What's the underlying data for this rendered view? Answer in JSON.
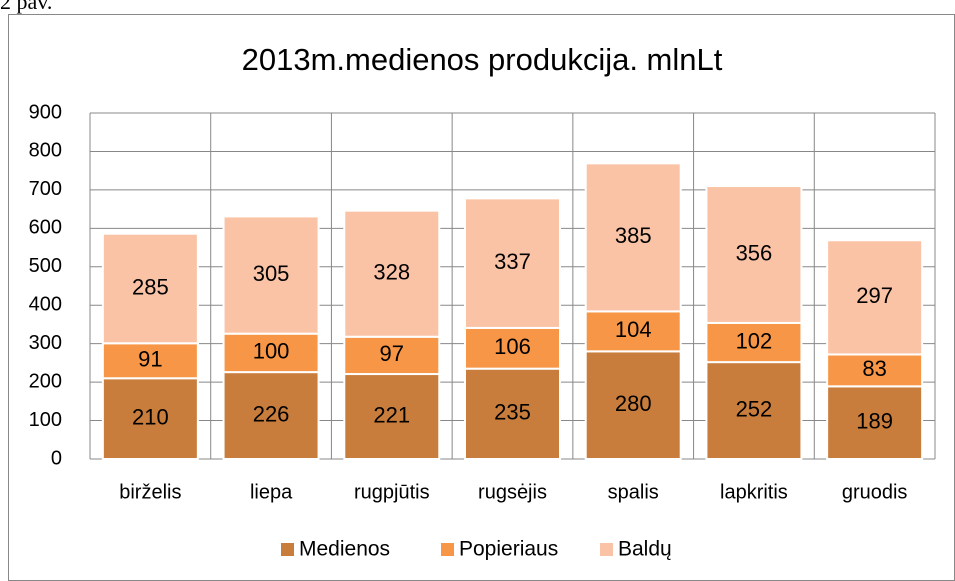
{
  "caption": "2 pav.",
  "chart_data": {
    "type": "stacked_bar",
    "title": "2013m.medienos produkcija. mlnLt",
    "categories": [
      "birželis",
      "liepa",
      "rugpjūtis",
      "rugsėjis",
      "spalis",
      "lapkritis",
      "gruodis"
    ],
    "series": [
      {
        "name": "Medienos",
        "color": "#c87d3c",
        "values": [
          210,
          226,
          221,
          235,
          280,
          252,
          189
        ]
      },
      {
        "name": "Popieriaus",
        "color": "#f79646",
        "values": [
          91,
          100,
          97,
          106,
          104,
          102,
          83
        ]
      },
      {
        "name": "Baldų",
        "color": "#fac3a6",
        "values": [
          285,
          305,
          328,
          337,
          385,
          356,
          297
        ]
      }
    ],
    "ylim": [
      0,
      900
    ],
    "yticks": [
      0,
      100,
      200,
      300,
      400,
      500,
      600,
      700,
      800,
      900
    ],
    "grid": true,
    "legend": "bottom"
  }
}
